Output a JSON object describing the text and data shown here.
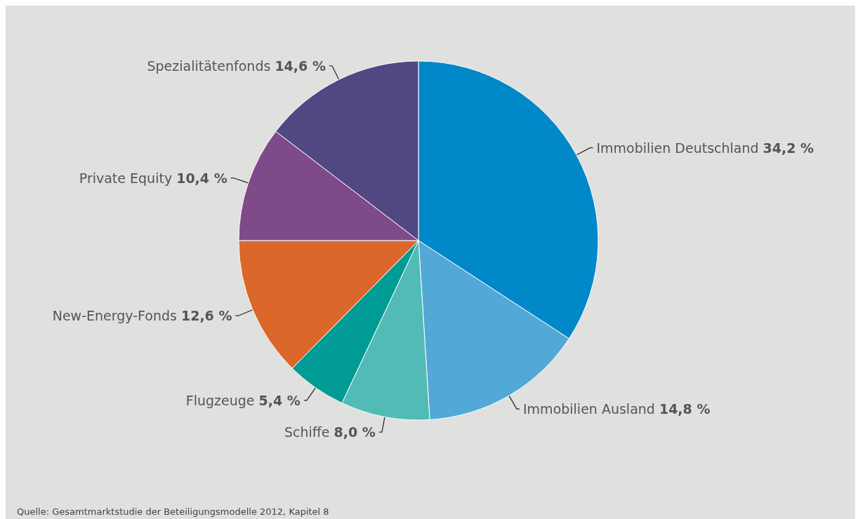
{
  "chart_data": {
    "type": "pie",
    "categories": [
      "Immobilien Deutschland",
      "Immobilien Ausland",
      "Schiffe",
      "Flugzeuge",
      "New-Energy-Fonds",
      "Private Equity",
      "Spezialitätenfonds"
    ],
    "values": [
      34.2,
      14.8,
      8.0,
      5.4,
      12.6,
      10.4,
      14.6
    ],
    "value_labels": [
      "34,2 %",
      "14,8 %",
      "8,0 %",
      "5,4 %",
      "12,6 %",
      "10,4 %",
      "14,6 %"
    ],
    "colors": [
      "#0088c9",
      "#52a8d6",
      "#52bbb5",
      "#009b94",
      "#db672b",
      "#7f4a8a",
      "#514783"
    ],
    "legend": false,
    "annotations": [
      "Quelle: Gesamtmarktstudie der Beteiligungsmodelle 2012, Kapitel 8"
    ]
  }
}
